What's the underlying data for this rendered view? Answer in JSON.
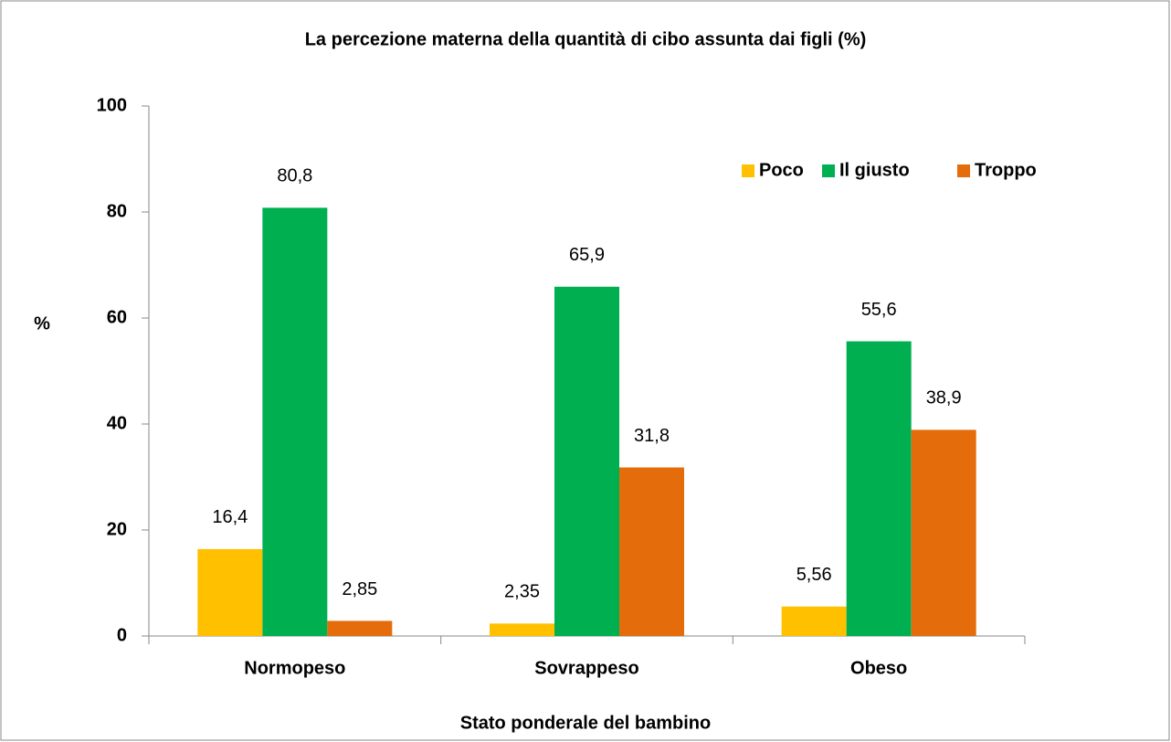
{
  "chart_data": {
    "type": "bar",
    "title": "La percezione materna della quantità di cibo assunta dai figli (%)",
    "x_label": "Stato ponderale  del bambino",
    "y_label": "%",
    "categories": [
      "Normopeso",
      "Sovrappeso",
      "Obeso"
    ],
    "series": [
      {
        "name": "Poco",
        "color": "#ffc000",
        "values": [
          16.4,
          2.35,
          5.56
        ],
        "value_labels": [
          "16,4",
          "2,35",
          "5,56"
        ]
      },
      {
        "name": "Il giusto",
        "color": "#00b050",
        "values": [
          80.8,
          65.9,
          55.6
        ],
        "value_labels": [
          "80,8",
          "65,9",
          "55,6"
        ]
      },
      {
        "name": "Troppo",
        "color": "#e46c0a",
        "values": [
          2.85,
          31.8,
          38.9
        ],
        "value_labels": [
          "2,85",
          "31,8",
          "38,9"
        ]
      }
    ],
    "ylim": [
      0,
      100
    ],
    "yticks": [
      0,
      20,
      40,
      60,
      80,
      100
    ],
    "grid": false,
    "legend_position": "top-right"
  }
}
